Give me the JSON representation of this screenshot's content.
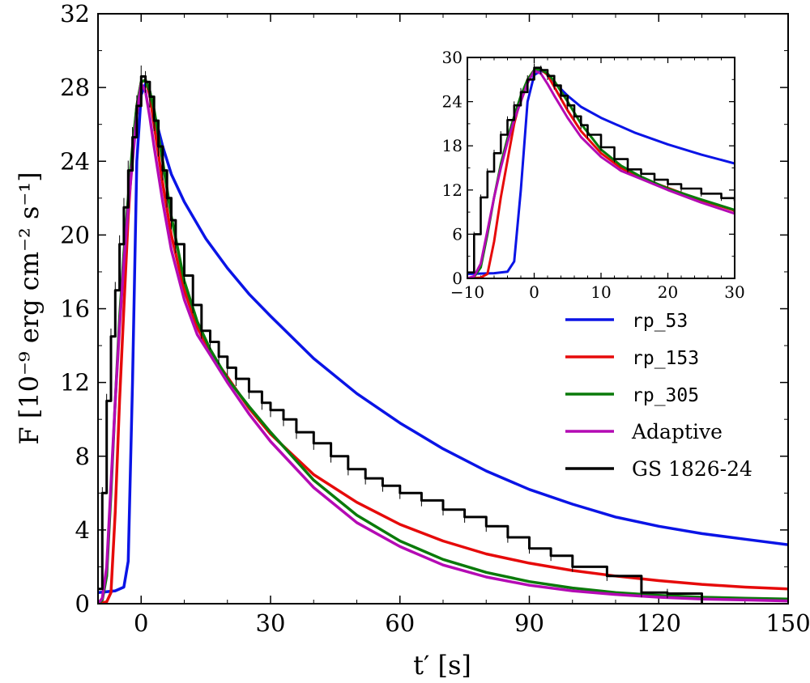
{
  "chart_data": {
    "type": "line",
    "title": "",
    "xlabel": "t′ [s]",
    "ylabel": "F [10⁻⁹ erg cm⁻² s⁻¹]",
    "xlim": [
      -10,
      150
    ],
    "ylim": [
      0,
      32
    ],
    "xticks": [
      0,
      30,
      60,
      90,
      120,
      150
    ],
    "yticks": [
      0,
      4,
      8,
      12,
      16,
      20,
      24,
      28,
      32
    ],
    "legend_position": "right",
    "series": [
      {
        "name": "rp_53",
        "color": "#0a14e6",
        "points": [
          [
            -10,
            0.6
          ],
          [
            -6,
            0.7
          ],
          [
            -4,
            0.9
          ],
          [
            -3,
            2.3
          ],
          [
            -2,
            12
          ],
          [
            -1,
            24
          ],
          [
            0,
            27.6
          ],
          [
            1,
            28.2
          ],
          [
            2,
            27.8
          ],
          [
            3,
            26.6
          ],
          [
            4,
            25.7
          ],
          [
            5,
            24.8
          ],
          [
            7,
            23.3
          ],
          [
            10,
            21.8
          ],
          [
            15,
            19.8
          ],
          [
            20,
            18.2
          ],
          [
            25,
            16.8
          ],
          [
            30,
            15.6
          ],
          [
            40,
            13.3
          ],
          [
            50,
            11.4
          ],
          [
            60,
            9.8
          ],
          [
            70,
            8.4
          ],
          [
            80,
            7.2
          ],
          [
            90,
            6.2
          ],
          [
            100,
            5.4
          ],
          [
            110,
            4.7
          ],
          [
            120,
            4.2
          ],
          [
            130,
            3.8
          ],
          [
            140,
            3.5
          ],
          [
            150,
            3.2
          ]
        ]
      },
      {
        "name": "rp_153",
        "color": "#e60a0a",
        "points": [
          [
            -10,
            0
          ],
          [
            -8,
            0.1
          ],
          [
            -7,
            0.6
          ],
          [
            -6,
            5
          ],
          [
            -5,
            11
          ],
          [
            -4,
            16
          ],
          [
            -3,
            21
          ],
          [
            -2,
            24.5
          ],
          [
            -1,
            27
          ],
          [
            0,
            28.3
          ],
          [
            1,
            28.4
          ],
          [
            2,
            27.6
          ],
          [
            3,
            26
          ],
          [
            5,
            22.8
          ],
          [
            7,
            20
          ],
          [
            10,
            17
          ],
          [
            13,
            15
          ],
          [
            16,
            13.6
          ],
          [
            20,
            12.3
          ],
          [
            25,
            10.6
          ],
          [
            30,
            9.2
          ],
          [
            40,
            7.0
          ],
          [
            50,
            5.5
          ],
          [
            60,
            4.3
          ],
          [
            70,
            3.4
          ],
          [
            80,
            2.7
          ],
          [
            90,
            2.2
          ],
          [
            100,
            1.8
          ],
          [
            110,
            1.5
          ],
          [
            120,
            1.25
          ],
          [
            130,
            1.05
          ],
          [
            140,
            0.9
          ],
          [
            150,
            0.8
          ]
        ]
      },
      {
        "name": "rp_305",
        "color": "#0a7a0a",
        "points": [
          [
            -10,
            0
          ],
          [
            -9,
            0.2
          ],
          [
            -8,
            1.5
          ],
          [
            -7,
            6
          ],
          [
            -6,
            11
          ],
          [
            -5,
            15.5
          ],
          [
            -4,
            19
          ],
          [
            -3,
            22
          ],
          [
            -2,
            24.8
          ],
          [
            -1,
            27
          ],
          [
            0,
            28.3
          ],
          [
            1,
            28.4
          ],
          [
            2,
            27.8
          ],
          [
            3,
            26.8
          ],
          [
            5,
            24
          ],
          [
            7,
            21
          ],
          [
            10,
            17.5
          ],
          [
            13,
            15.3
          ],
          [
            16,
            13.8
          ],
          [
            20,
            12.2
          ],
          [
            25,
            10.7
          ],
          [
            30,
            9.3
          ],
          [
            40,
            6.7
          ],
          [
            50,
            4.8
          ],
          [
            60,
            3.4
          ],
          [
            70,
            2.4
          ],
          [
            80,
            1.7
          ],
          [
            90,
            1.2
          ],
          [
            100,
            0.85
          ],
          [
            110,
            0.6
          ],
          [
            120,
            0.45
          ],
          [
            130,
            0.35
          ],
          [
            140,
            0.3
          ],
          [
            150,
            0.25
          ]
        ]
      },
      {
        "name": "Adaptive",
        "color": "#b40ab4",
        "points": [
          [
            -10,
            0
          ],
          [
            -9,
            0.3
          ],
          [
            -8,
            2
          ],
          [
            -7,
            6.5
          ],
          [
            -6,
            11
          ],
          [
            -5,
            15
          ],
          [
            -4,
            18.5
          ],
          [
            -3,
            21.5
          ],
          [
            -2,
            24
          ],
          [
            -1,
            26.5
          ],
          [
            0,
            28.2
          ],
          [
            1,
            27.8
          ],
          [
            2,
            26.4
          ],
          [
            3,
            24.8
          ],
          [
            5,
            21.8
          ],
          [
            7,
            19.2
          ],
          [
            10,
            16.5
          ],
          [
            13,
            14.6
          ],
          [
            16,
            13.5
          ],
          [
            20,
            12
          ],
          [
            25,
            10.3
          ],
          [
            30,
            8.8
          ],
          [
            40,
            6.3
          ],
          [
            50,
            4.4
          ],
          [
            60,
            3.1
          ],
          [
            70,
            2.1
          ],
          [
            80,
            1.45
          ],
          [
            90,
            1.0
          ],
          [
            100,
            0.7
          ],
          [
            110,
            0.5
          ],
          [
            120,
            0.35
          ],
          [
            130,
            0.25
          ],
          [
            140,
            0.2
          ],
          [
            150,
            0.15
          ]
        ]
      },
      {
        "name": "GS 1826-24",
        "color": "#000000",
        "points": [
          [
            -10,
            0.8
          ],
          [
            -9,
            6
          ],
          [
            -8,
            11
          ],
          [
            -7,
            14.5
          ],
          [
            -6,
            17
          ],
          [
            -5,
            19.5
          ],
          [
            -4,
            21.5
          ],
          [
            -3,
            23.5
          ],
          [
            -2,
            25.3
          ],
          [
            -1,
            27
          ],
          [
            0,
            28.6
          ],
          [
            1,
            28.3
          ],
          [
            2,
            27.5
          ],
          [
            3,
            26.2
          ],
          [
            4,
            24.8
          ],
          [
            5,
            23.5
          ],
          [
            6,
            22
          ],
          [
            7,
            20.8
          ],
          [
            8,
            19.5
          ],
          [
            10,
            17.8
          ],
          [
            12,
            16.2
          ],
          [
            14,
            14.8
          ],
          [
            16,
            14.2
          ],
          [
            18,
            13.4
          ],
          [
            20,
            12.8
          ],
          [
            22,
            12.2
          ],
          [
            25,
            11.5
          ],
          [
            28,
            10.9
          ],
          [
            30,
            10.5
          ],
          [
            33,
            10
          ],
          [
            36,
            9.3
          ],
          [
            40,
            8.7
          ],
          [
            44,
            8
          ],
          [
            48,
            7.3
          ],
          [
            52,
            6.8
          ],
          [
            56,
            6.4
          ],
          [
            60,
            6.0
          ],
          [
            65,
            5.6
          ],
          [
            70,
            5.1
          ],
          [
            75,
            4.7
          ],
          [
            80,
            4.2
          ],
          [
            85,
            3.6
          ],
          [
            90,
            3.0
          ],
          [
            95,
            2.6
          ],
          [
            100,
            2.0
          ],
          [
            108,
            1.5
          ],
          [
            116,
            0.6
          ],
          [
            122,
            0.55
          ],
          [
            130,
            0.0
          ]
        ]
      }
    ],
    "inset": {
      "xlim": [
        -10,
        30
      ],
      "ylim": [
        0,
        30
      ],
      "xticks": [
        -10,
        0,
        10,
        20,
        30
      ],
      "yticks": [
        0,
        6,
        12,
        18,
        24,
        30
      ],
      "xtick_labels": [
        "−10",
        "0",
        "10",
        "20",
        "30"
      ]
    }
  }
}
